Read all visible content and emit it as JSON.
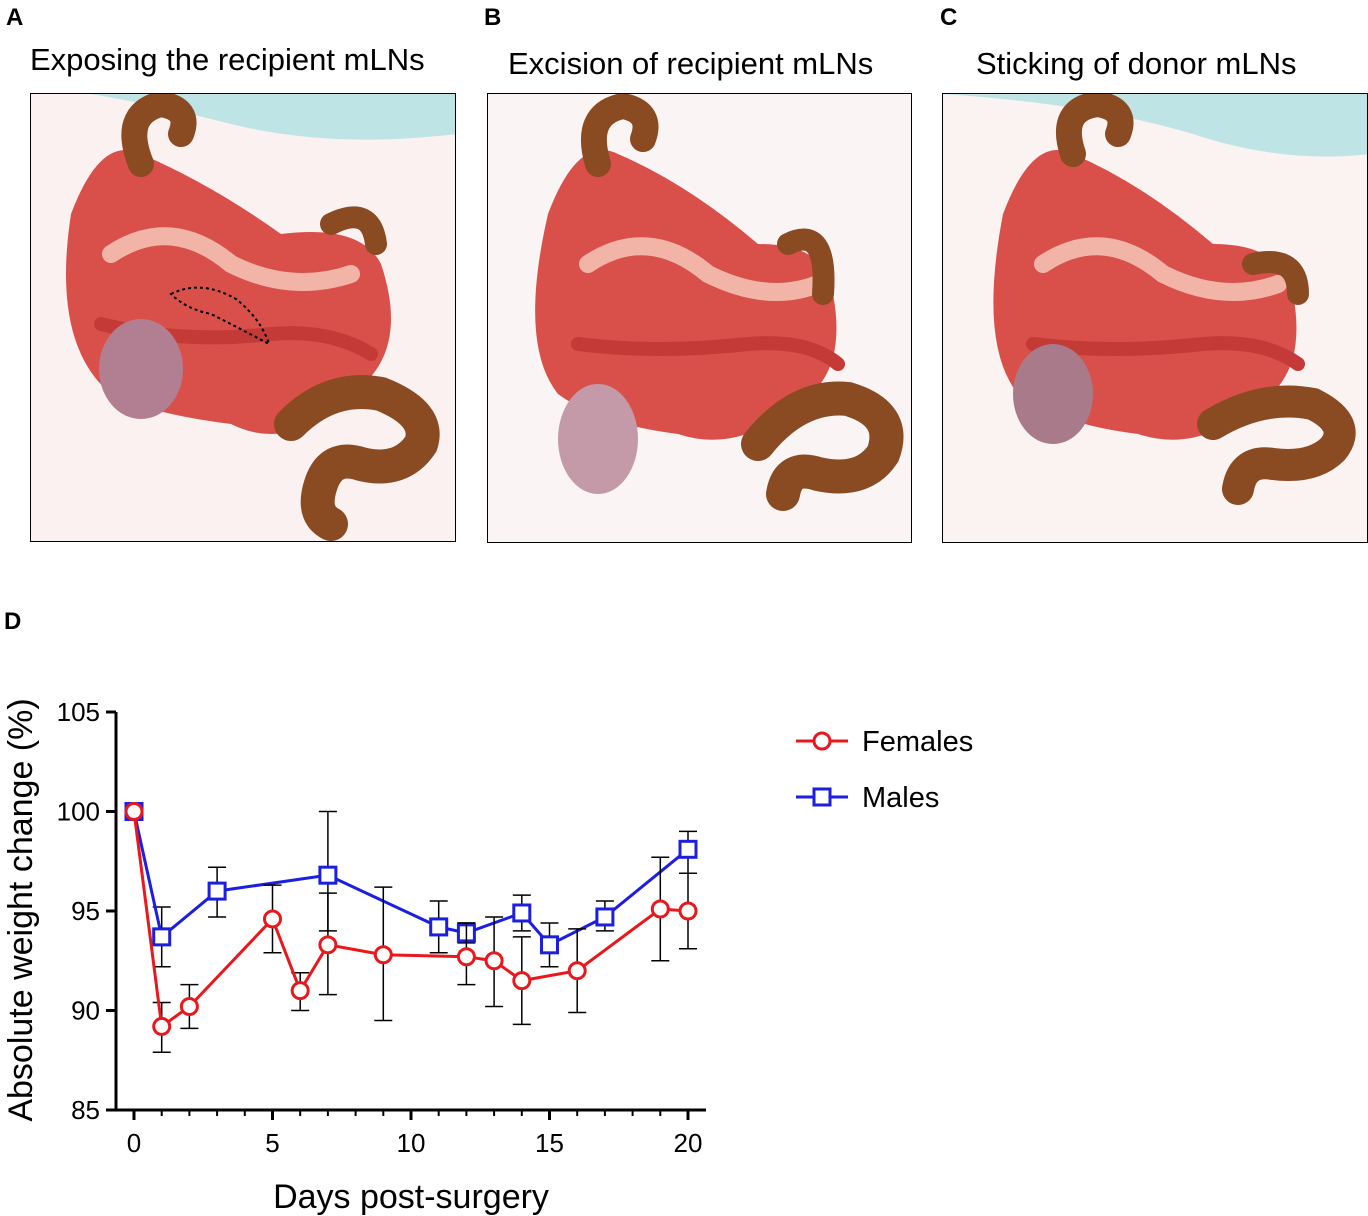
{
  "panels": [
    {
      "letter": "A",
      "title": "Exposing the recipient mLNs"
    },
    {
      "letter": "B",
      "title": "Excision of recipient mLNs"
    },
    {
      "letter": "C",
      "title": "Sticking of donor mLNs"
    }
  ],
  "panel_d_letter": "D",
  "colors": {
    "females": "#e8181c",
    "males": "#1c1ee0",
    "axis": "#000000"
  },
  "chart_data": {
    "type": "line",
    "title": "",
    "xlabel": "Days post-surgery",
    "ylabel": "Absolute weight change (%)",
    "xlim": [
      0,
      20
    ],
    "ylim": [
      85,
      105
    ],
    "xticks": [
      0,
      5,
      10,
      15,
      20
    ],
    "yticks": [
      85,
      90,
      95,
      100,
      105
    ],
    "grid": false,
    "legend_position": "top-right",
    "series": [
      {
        "name": "Females",
        "marker": "circle",
        "color": "#e8181c",
        "x": [
          0,
          1,
          2,
          5,
          6,
          7,
          9,
          12,
          13,
          14,
          16,
          19,
          20
        ],
        "y": [
          100,
          89.2,
          90.2,
          94.6,
          91.0,
          93.3,
          92.8,
          92.7,
          92.5,
          91.5,
          92.0,
          95.1,
          95.0
        ],
        "err_upper": [
          0,
          1.2,
          1.1,
          1.7,
          0.9,
          2.6,
          3.4,
          1.7,
          2.2,
          2.2,
          2.1,
          2.6,
          1.9
        ],
        "err_lower": [
          0,
          1.3,
          1.1,
          1.7,
          1.0,
          2.5,
          3.3,
          1.4,
          2.3,
          2.2,
          2.1,
          2.6,
          1.9
        ]
      },
      {
        "name": "Males",
        "marker": "square",
        "color": "#1c1ee0",
        "x": [
          0,
          1,
          3,
          7,
          11,
          12,
          14,
          15,
          17,
          20
        ],
        "y": [
          100,
          93.7,
          96.0,
          96.8,
          94.2,
          93.9,
          94.9,
          93.3,
          94.7,
          98.1
        ],
        "err_upper": [
          0,
          1.5,
          1.2,
          3.2,
          1.3,
          0.5,
          0.9,
          1.1,
          0.8,
          0.9
        ],
        "err_lower": [
          0,
          1.5,
          1.3,
          2.8,
          1.3,
          0.5,
          0.9,
          1.1,
          0.7,
          1.2
        ]
      }
    ]
  }
}
